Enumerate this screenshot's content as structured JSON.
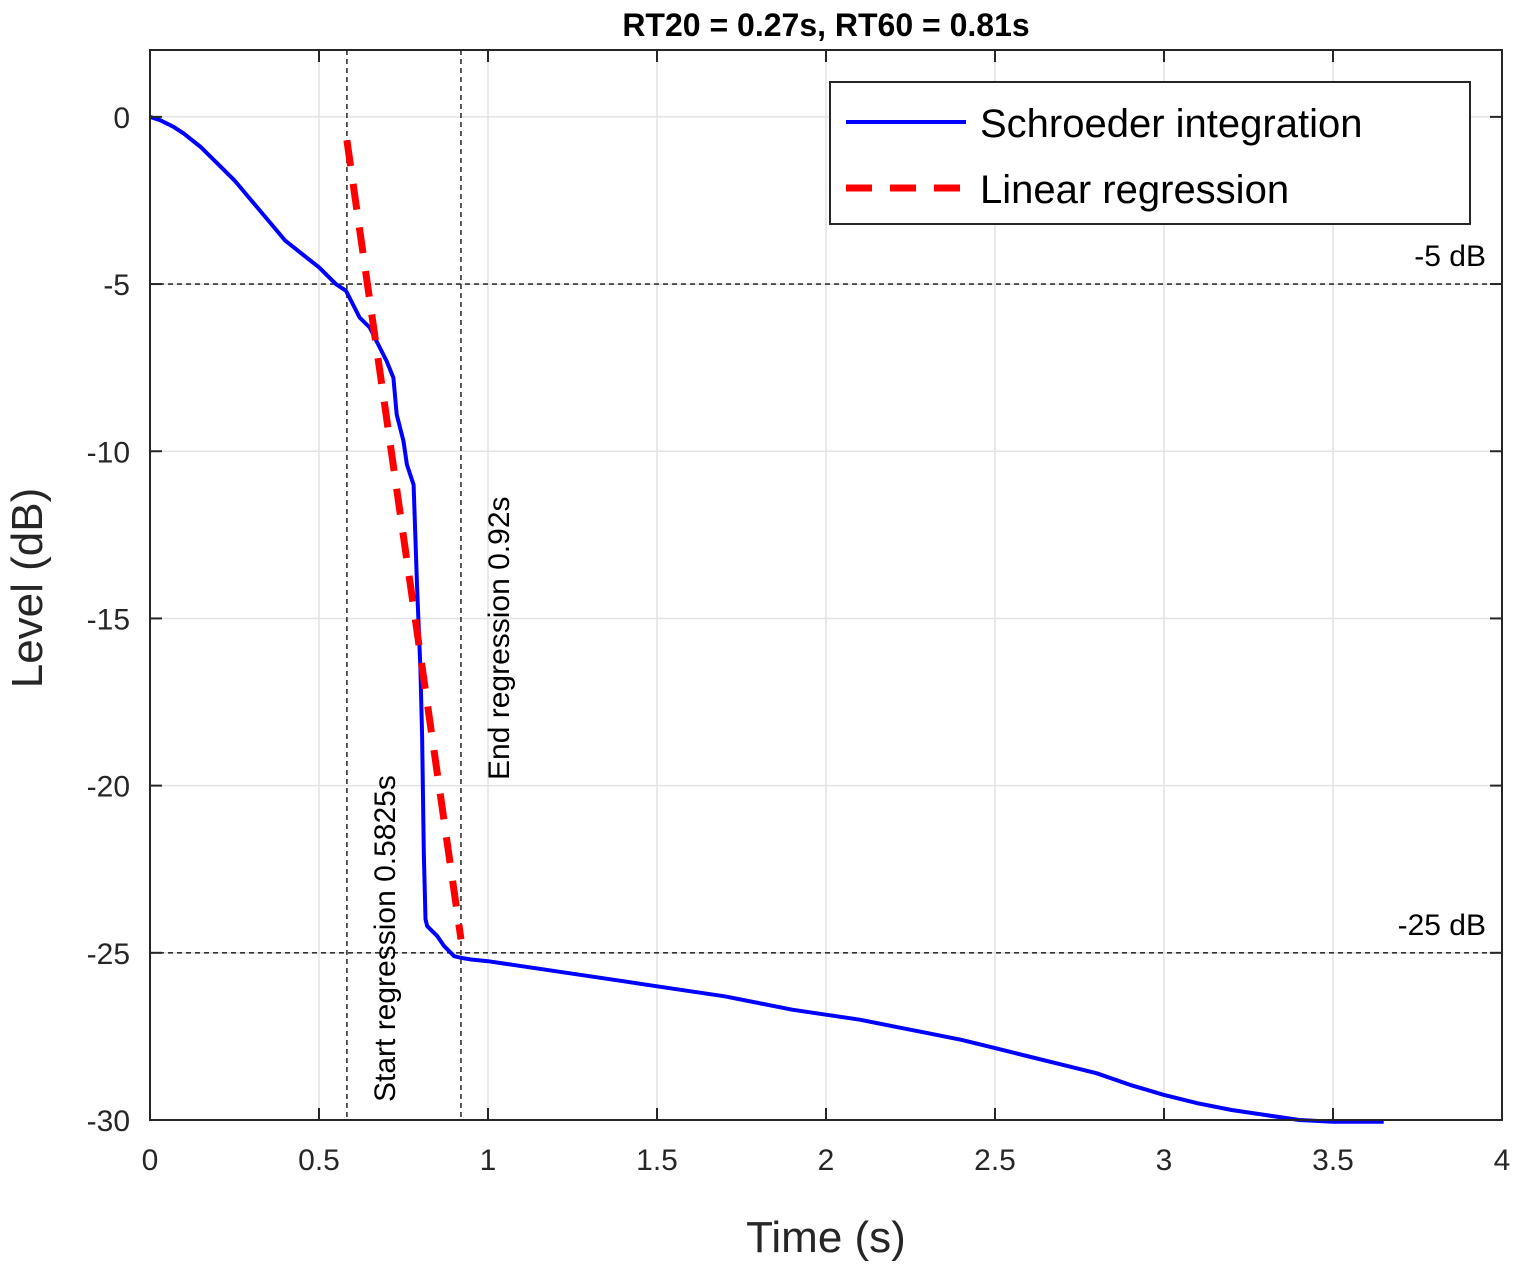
{
  "chart_data": {
    "type": "line",
    "title": "RT20 = 0.27s, RT60 = 0.81s",
    "xlabel": "Time (s)",
    "ylabel": "Level (dB)",
    "xlim": [
      0,
      4
    ],
    "ylim": [
      -30,
      2
    ],
    "xticks": [
      0,
      0.5,
      1,
      1.5,
      2,
      2.5,
      3,
      3.5,
      4
    ],
    "xtick_labels": [
      "0",
      "0.5",
      "1",
      "1.5",
      "2",
      "2.5",
      "3",
      "3.5",
      "4"
    ],
    "yticks": [
      -30,
      -25,
      -20,
      -15,
      -10,
      -5,
      0
    ],
    "ytick_labels": [
      "-30",
      "-25",
      "-20",
      "-15",
      "-10",
      "-5",
      "0"
    ],
    "grid": true,
    "legend_position": "top-right",
    "series": [
      {
        "name": "Schroeder integration",
        "color": "#0000ff",
        "style": "solid",
        "x": [
          0,
          0.03,
          0.07,
          0.1,
          0.15,
          0.2,
          0.25,
          0.3,
          0.35,
          0.4,
          0.45,
          0.5,
          0.55,
          0.58,
          0.6,
          0.62,
          0.65,
          0.68,
          0.7,
          0.72,
          0.73,
          0.75,
          0.76,
          0.78,
          0.79,
          0.8,
          0.805,
          0.81,
          0.815,
          0.82,
          0.83,
          0.85,
          0.87,
          0.9,
          0.92,
          0.95,
          1.0,
          1.1,
          1.2,
          1.3,
          1.4,
          1.5,
          1.6,
          1.7,
          1.8,
          1.9,
          2.0,
          2.1,
          2.2,
          2.3,
          2.4,
          2.5,
          2.6,
          2.7,
          2.8,
          2.9,
          3.0,
          3.1,
          3.2,
          3.3,
          3.4,
          3.5,
          3.55,
          3.6,
          3.65
        ],
        "y": [
          0,
          -0.1,
          -0.3,
          -0.5,
          -0.9,
          -1.4,
          -1.9,
          -2.5,
          -3.1,
          -3.7,
          -4.1,
          -4.5,
          -5.0,
          -5.2,
          -5.6,
          -6.0,
          -6.3,
          -6.9,
          -7.3,
          -7.8,
          -8.9,
          -9.7,
          -10.4,
          -11.0,
          -14.0,
          -16.5,
          -18.5,
          -22.0,
          -24.0,
          -24.2,
          -24.3,
          -24.5,
          -24.8,
          -25.1,
          -25.15,
          -25.2,
          -25.25,
          -25.4,
          -25.55,
          -25.7,
          -25.85,
          -26.0,
          -26.15,
          -26.3,
          -26.5,
          -26.7,
          -26.85,
          -27.0,
          -27.2,
          -27.4,
          -27.6,
          -27.85,
          -28.1,
          -28.35,
          -28.6,
          -28.95,
          -29.25,
          -29.5,
          -29.7,
          -29.85,
          -30.0,
          -30.05,
          -30.05,
          -30.05,
          -30.05
        ]
      },
      {
        "name": "Linear regression",
        "color": "#ff0000",
        "style": "dashed",
        "x": [
          0.5825,
          0.92
        ],
        "y": [
          -0.7,
          -24.6
        ]
      }
    ],
    "reference_lines": [
      {
        "orientation": "horizontal",
        "value": -5,
        "label": "-5 dB"
      },
      {
        "orientation": "horizontal",
        "value": -25,
        "label": "-25 dB"
      },
      {
        "orientation": "vertical",
        "value": 0.5825,
        "label": "Start regression 0.5825s"
      },
      {
        "orientation": "vertical",
        "value": 0.92,
        "label": "End regression 0.92s"
      }
    ]
  }
}
